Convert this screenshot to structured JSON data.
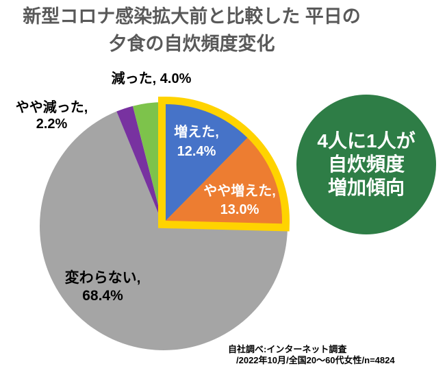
{
  "title": {
    "line1": "新型コロナ感染拡大前と比較した",
    "line2": "平日の夕食の自炊頻度変化"
  },
  "chart_data": {
    "type": "pie",
    "title": "新型コロナ感染拡大前と比較した平日の夕食の自炊頻度変化",
    "unit": "%",
    "direction": "clockwise",
    "start_angle_deg": 0,
    "legend_position": "none",
    "slices": [
      {
        "name": "increased",
        "label": "増えた",
        "value": 12.4,
        "display_label": "増えた,",
        "display_value": "12.4%",
        "color": "#4673C8",
        "text_color": "#FFFFFF",
        "highlighted": true
      },
      {
        "name": "somewhat-increased",
        "label": "やや増えた",
        "value": 13.0,
        "display_label": "やや増えた,",
        "display_value": "13.0%",
        "color": "#ED7D31",
        "text_color": "#FFFFFF",
        "highlighted": true
      },
      {
        "name": "unchanged",
        "label": "変わらない",
        "value": 68.4,
        "display_label": "変わらない,",
        "display_value": "68.4%",
        "color": "#A5A5A5",
        "text_color": "#000000",
        "highlighted": false
      },
      {
        "name": "somewhat-decreased",
        "label": "やや減った",
        "value": 2.2,
        "display_label": "やや減った,",
        "display_value": "2.2%",
        "color": "#7832A0",
        "text_color": "#000000",
        "highlighted": false
      },
      {
        "name": "decreased",
        "label": "減った",
        "value": 4.0,
        "display_label": "減った,",
        "display_value": "4.0%",
        "color": "#7DC34B",
        "text_color": "#000000",
        "highlighted": false
      }
    ],
    "highlight_ring_color": "#FFD300"
  },
  "callout": {
    "line1": "4人に1人が",
    "line2": "自炊頻度",
    "line3": "増加傾向",
    "bg_color": "#2E7D46",
    "text_color": "#FFFFFF"
  },
  "footnote": {
    "line1": "自社調べ:インターネット調査",
    "line2": "/2022年10月/全国20〜60代女性/n=4824"
  }
}
